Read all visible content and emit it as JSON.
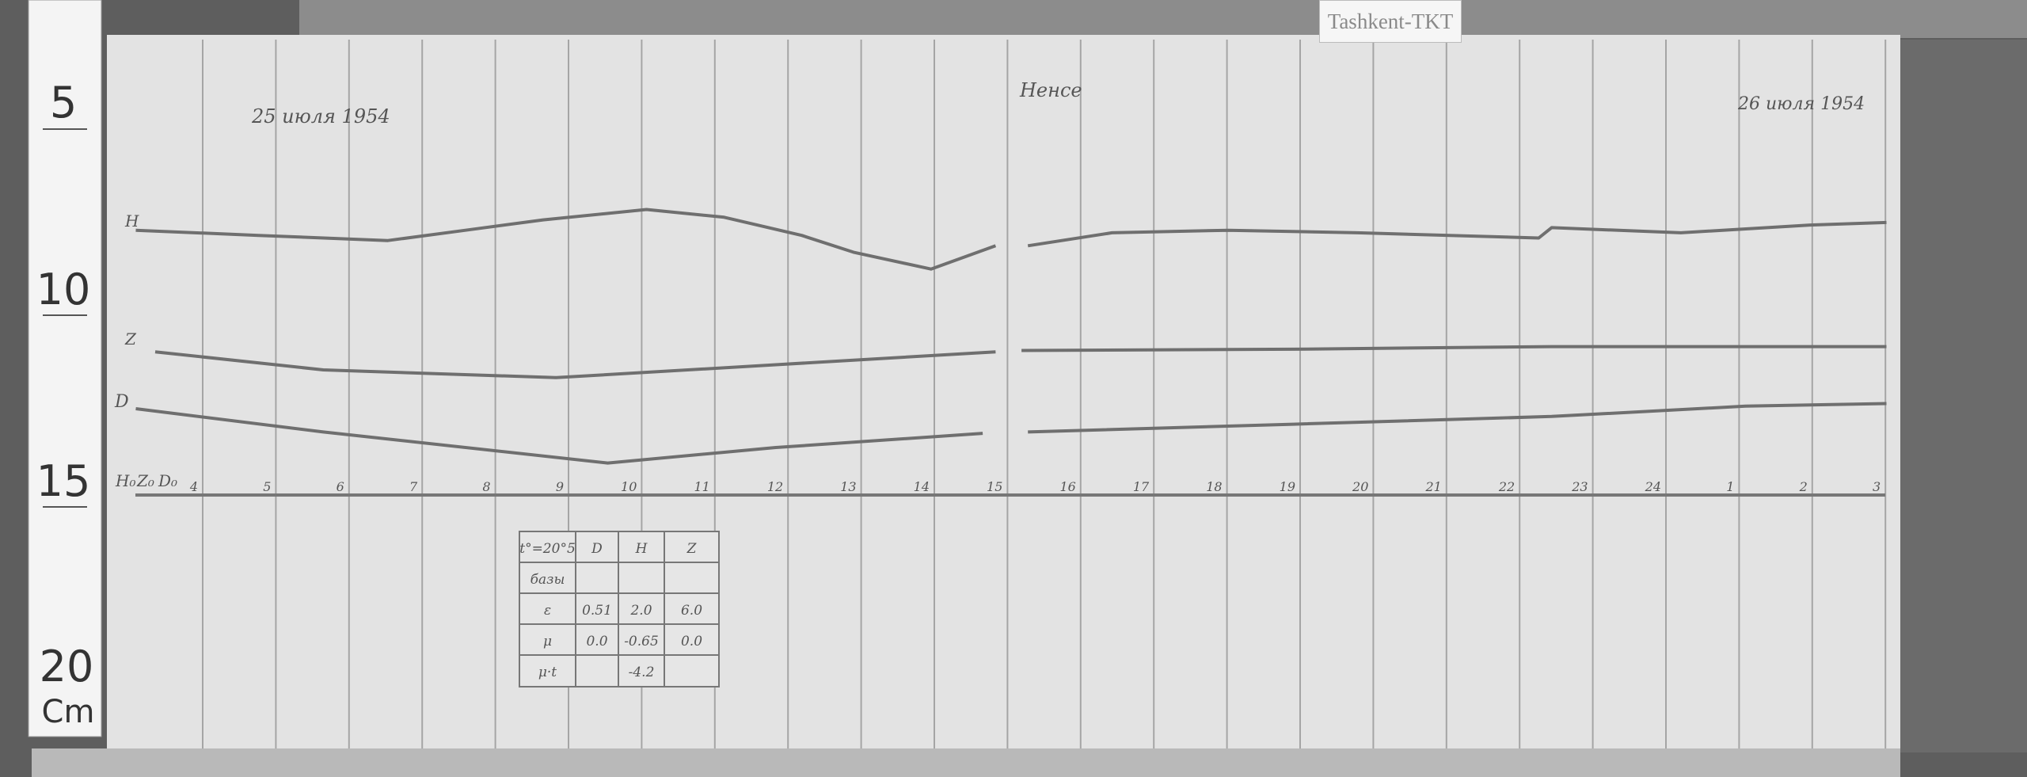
{
  "station_tag": "Tashkent-TKT",
  "ruler": {
    "marks": [
      "5",
      "10",
      "15",
      "20"
    ],
    "unit": "Cm"
  },
  "header": {
    "date_left": "25 июля 1954",
    "date_right": "26 июля 1954",
    "signature": "Ненсе"
  },
  "trace_labels": {
    "H": "H",
    "Z": "Z",
    "D": "D"
  },
  "baselines": {
    "H": "H₀",
    "Z": "Z₀",
    "D": "D₀"
  },
  "hours": [
    "4",
    "5",
    "6",
    "7",
    "8",
    "9",
    "10",
    "11",
    "12",
    "13",
    "14",
    "15",
    "16",
    "17",
    "18",
    "19",
    "20",
    "21",
    "22",
    "23",
    "24",
    "1",
    "2",
    "3"
  ],
  "table": {
    "header": [
      "t°=20°5",
      "D",
      "H",
      "Z"
    ],
    "rows": [
      [
        "базы",
        "",
        "",
        ""
      ],
      [
        "ε",
        "0.51",
        "2.0",
        "6.0"
      ],
      [
        "μ",
        "0.0",
        "-0.65",
        "0.0"
      ],
      [
        "μ·t",
        "",
        "-4.2",
        ""
      ]
    ]
  },
  "colors": {
    "background": "#5e5e5e",
    "paper": "#e3e3e3",
    "trace": "#6f6f6f",
    "grid": "#9a9a9a"
  }
}
